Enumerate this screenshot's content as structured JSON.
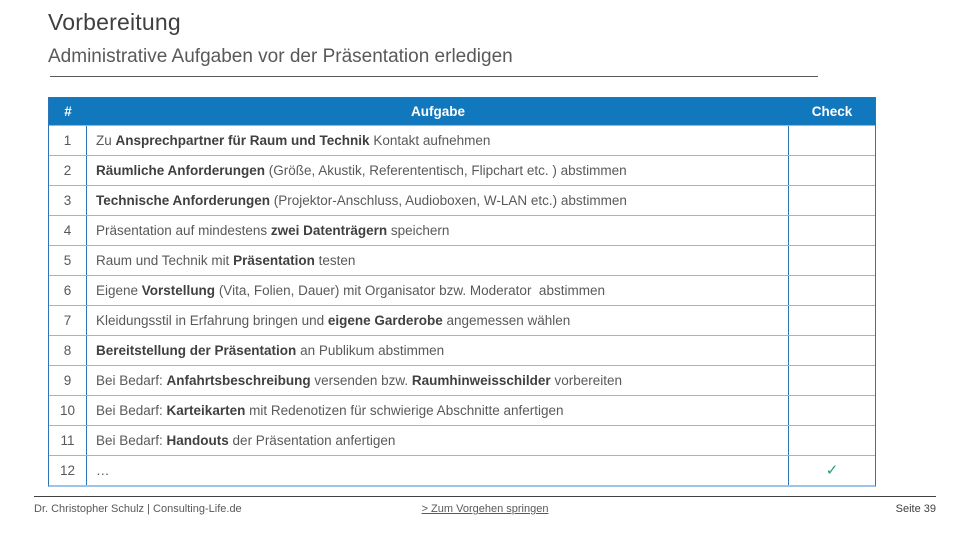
{
  "slide": {
    "title": "Vorbereitung",
    "subtitle": "Administrative Aufgaben vor der Präsentation erledigen"
  },
  "table": {
    "headers": {
      "num": "#",
      "task": "Aufgabe",
      "check": "Check"
    },
    "rows": [
      {
        "num": "1",
        "check": "",
        "segments": [
          {
            "t": "Zu ",
            "b": false
          },
          {
            "t": "Ansprechpartner für Raum und Technik",
            "b": true
          },
          {
            "t": " Kontakt aufnehmen",
            "b": false
          }
        ]
      },
      {
        "num": "2",
        "check": "",
        "segments": [
          {
            "t": "Räumliche Anforderungen",
            "b": true
          },
          {
            "t": " (Größe, Akustik, Referententisch, Flipchart etc. ) abstimmen",
            "b": false
          }
        ]
      },
      {
        "num": "3",
        "check": "",
        "segments": [
          {
            "t": "Technische Anforderungen",
            "b": true
          },
          {
            "t": " (Projektor-Anschluss, Audioboxen, W-LAN etc.) abstimmen",
            "b": false
          }
        ]
      },
      {
        "num": "4",
        "check": "",
        "segments": [
          {
            "t": "Präsentation auf mindestens ",
            "b": false
          },
          {
            "t": "zwei Datenträgern",
            "b": true
          },
          {
            "t": " speichern",
            "b": false
          }
        ]
      },
      {
        "num": "5",
        "check": "",
        "segments": [
          {
            "t": "Raum und Technik mit ",
            "b": false
          },
          {
            "t": "Präsentation",
            "b": true
          },
          {
            "t": " testen",
            "b": false
          }
        ]
      },
      {
        "num": "6",
        "check": "",
        "segments": [
          {
            "t": "Eigene ",
            "b": false
          },
          {
            "t": "Vorstellung",
            "b": true
          },
          {
            "t": " (Vita, Folien, Dauer) mit Organisator bzw. Moderator  abstimmen",
            "b": false
          }
        ]
      },
      {
        "num": "7",
        "check": "",
        "segments": [
          {
            "t": "Kleidungsstil in Erfahrung bringen und ",
            "b": false
          },
          {
            "t": "eigene Garderobe",
            "b": true
          },
          {
            "t": " angemessen wählen",
            "b": false
          }
        ]
      },
      {
        "num": "8",
        "check": "",
        "segments": [
          {
            "t": "Bereitstellung der Präsentation",
            "b": true
          },
          {
            "t": " an Publikum abstimmen",
            "b": false
          }
        ]
      },
      {
        "num": "9",
        "check": "",
        "segments": [
          {
            "t": "Bei Bedarf: ",
            "b": false
          },
          {
            "t": "Anfahrtsbeschreibung",
            "b": true
          },
          {
            "t": " versenden bzw. ",
            "b": false
          },
          {
            "t": "Raumhinweisschilder",
            "b": true
          },
          {
            "t": " vorbereiten",
            "b": false
          }
        ]
      },
      {
        "num": "10",
        "check": "",
        "segments": [
          {
            "t": "Bei Bedarf: ",
            "b": false
          },
          {
            "t": "Karteikarten",
            "b": true
          },
          {
            "t": " mit Redenotizen für schwierige Abschnitte anfertigen",
            "b": false
          }
        ]
      },
      {
        "num": "11",
        "check": "",
        "segments": [
          {
            "t": "Bei Bedarf: ",
            "b": false
          },
          {
            "t": "Handouts",
            "b": true
          },
          {
            "t": " der Präsentation anfertigen",
            "b": false
          }
        ]
      },
      {
        "num": "12",
        "check": "✓",
        "segments": [
          {
            "t": "…",
            "b": false
          }
        ]
      }
    ]
  },
  "footer": {
    "author": "Dr. Christopher Schulz | Consulting-Life.de",
    "link": "> Zum Vorgehen springen",
    "page": "Seite 39"
  },
  "colors": {
    "header_bg": "#1278be",
    "check_green": "#21a366"
  }
}
